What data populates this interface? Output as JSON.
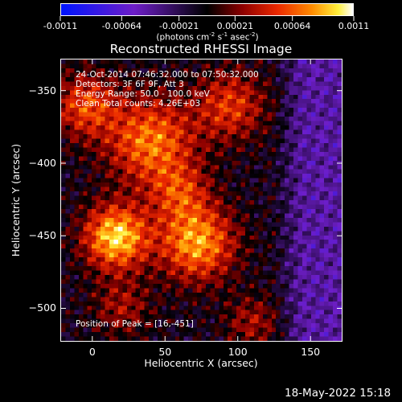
{
  "colorbar": {
    "tick_labels": [
      "-0.0011",
      "-0.00064",
      "-0.00021",
      "0.00021",
      "0.00064",
      "0.0011"
    ],
    "tick_values": [
      -0.0011,
      -0.00064,
      -0.00021,
      0.00021,
      0.00064,
      0.0011
    ],
    "unit_label": "(photons cm-2 s-1 asec-2)",
    "unit_parts": [
      "(photons cm",
      "-2",
      " s",
      "-1",
      " asec",
      "-2",
      ")"
    ],
    "range": [
      -0.0011,
      0.0011
    ],
    "colormap": "blue-purple-black-red-orange-yellow-white"
  },
  "chart_data": {
    "type": "heatmap",
    "title": "Reconstructed RHESSI Image",
    "xlabel": "Heliocentric X (arcsec)",
    "ylabel": "Heliocentric Y (arcsec)",
    "xlim": [
      -22,
      172
    ],
    "ylim": [
      -523,
      -328
    ],
    "x_ticks": [
      0,
      50,
      100,
      150
    ],
    "y_ticks": [
      -350,
      -400,
      -450,
      -500
    ],
    "x_tick_labels": [
      "0",
      "50",
      "100",
      "150"
    ],
    "y_tick_labels": [
      "−350",
      "−400",
      "−450",
      "−500"
    ],
    "annotations": [
      "24-Oct-2014 07:46:32.000 to 07:50:32.000",
      "Detectors: 3F 6F 9F, Att 3",
      "Energy Range: 50.0 - 100.0 keV",
      "Clean     Total counts: 4.26E+03"
    ],
    "peak_label": "Position of Peak = [16,-451]",
    "peak": [
      16,
      -451
    ]
  },
  "timestamp": "18-May-2022 15:18"
}
